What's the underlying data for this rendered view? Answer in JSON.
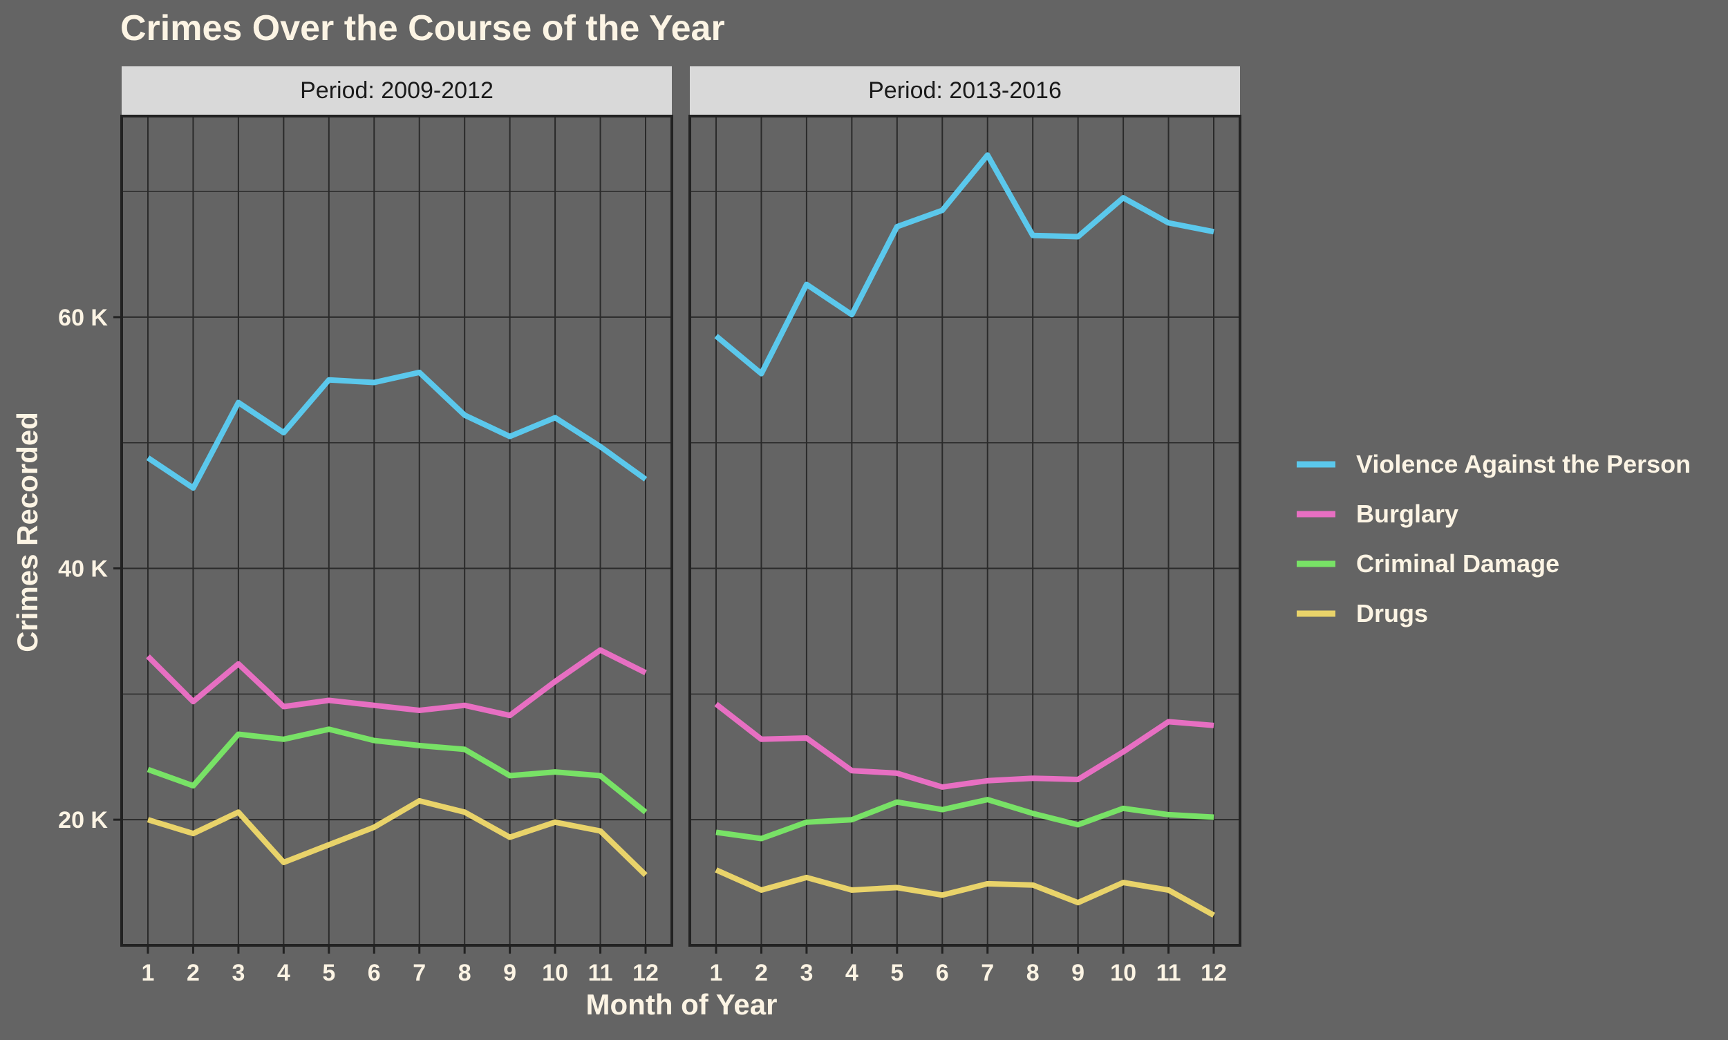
{
  "chart_data": {
    "type": "line",
    "title": "Crimes Over the Course of the Year",
    "xlabel": "Month of Year",
    "ylabel": "Crimes Recorded",
    "x": [
      1,
      2,
      3,
      4,
      5,
      6,
      7,
      8,
      9,
      10,
      11,
      12
    ],
    "ylim": [
      10000,
      76000
    ],
    "yticks": [
      20000,
      40000,
      60000
    ],
    "ytick_labels": [
      "20 K",
      "40 K",
      "60 K"
    ],
    "grid": true,
    "legend_position": "right",
    "panels": [
      {
        "strip_label": "Period: 2009-2012",
        "series": [
          {
            "name": "Violence Against the Person",
            "color": "#5bc8ec",
            "values": [
              48800,
              46400,
              53200,
              50800,
              55000,
              54800,
              55600,
              52200,
              50500,
              52000,
              49700,
              47100
            ]
          },
          {
            "name": "Burglary",
            "color": "#e76fc2",
            "values": [
              33000,
              29400,
              32400,
              29000,
              29500,
              29100,
              28700,
              29100,
              28300,
              31000,
              33500,
              31700
            ]
          },
          {
            "name": "Criminal Damage",
            "color": "#78e266",
            "values": [
              24000,
              22700,
              26800,
              26400,
              27200,
              26300,
              25900,
              25600,
              23500,
              23800,
              23500,
              20600
            ]
          },
          {
            "name": "Drugs",
            "color": "#e9d36a",
            "values": [
              20000,
              18900,
              20600,
              16600,
              18000,
              19400,
              21500,
              20600,
              18600,
              19800,
              19100,
              15600
            ]
          }
        ]
      },
      {
        "strip_label": "Period: 2013-2016",
        "series": [
          {
            "name": "Violence Against the Person",
            "color": "#5bc8ec",
            "values": [
              58500,
              55500,
              62600,
              60200,
              67200,
              68500,
              72900,
              66500,
              66400,
              69500,
              67500,
              66800
            ]
          },
          {
            "name": "Burglary",
            "color": "#e76fc2",
            "values": [
              29200,
              26400,
              26500,
              23900,
              23700,
              22600,
              23100,
              23300,
              23200,
              25400,
              27800,
              27500
            ]
          },
          {
            "name": "Criminal Damage",
            "color": "#78e266",
            "values": [
              19000,
              18500,
              19800,
              20000,
              21400,
              20800,
              21600,
              20500,
              19600,
              20900,
              20400,
              20200
            ]
          },
          {
            "name": "Drugs",
            "color": "#e9d36a",
            "values": [
              16000,
              14400,
              15400,
              14400,
              14600,
              14000,
              14900,
              14800,
              13400,
              15000,
              14400,
              12400
            ]
          }
        ]
      }
    ],
    "legend": [
      {
        "label": "Violence Against the Person",
        "color": "#5bc8ec"
      },
      {
        "label": "Burglary",
        "color": "#e76fc2"
      },
      {
        "label": "Criminal Damage",
        "color": "#78e266"
      },
      {
        "label": "Drugs",
        "color": "#e9d36a"
      }
    ],
    "colors": {
      "background": "#646464",
      "strip": "#d9d9d9",
      "grid": "#2a2a2a",
      "text": "#fcf4e4",
      "strip_text": "#1a1a1a"
    }
  }
}
